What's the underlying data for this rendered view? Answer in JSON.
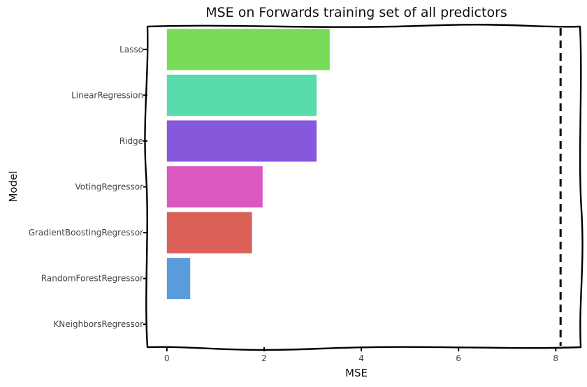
{
  "chart_data": {
    "type": "bar",
    "orientation": "horizontal",
    "title": "MSE on Forwards training set of all predictors",
    "xlabel": "MSE",
    "ylabel": "Model",
    "categories": [
      "Lasso",
      "LinearRegression",
      "Ridge",
      "VotingRegressor",
      "GradientBoostingRegressor",
      "RandomForestRegressor",
      "KNeighborsRegressor"
    ],
    "values": [
      3.35,
      3.08,
      3.08,
      1.97,
      1.75,
      0.48,
      0.0
    ],
    "colors": [
      "#77db58",
      "#58dbab",
      "#8658db",
      "#db58c0",
      "#db6158",
      "#5a9bdb",
      "#5ab8db"
    ],
    "xlim": [
      -0.4,
      8.5
    ],
    "xticks": [
      0,
      2,
      4,
      6,
      8
    ],
    "reference_line": {
      "x": 8.1,
      "style": "dashed",
      "color": "#000000"
    },
    "grid": false,
    "style": "hand-drawn"
  }
}
